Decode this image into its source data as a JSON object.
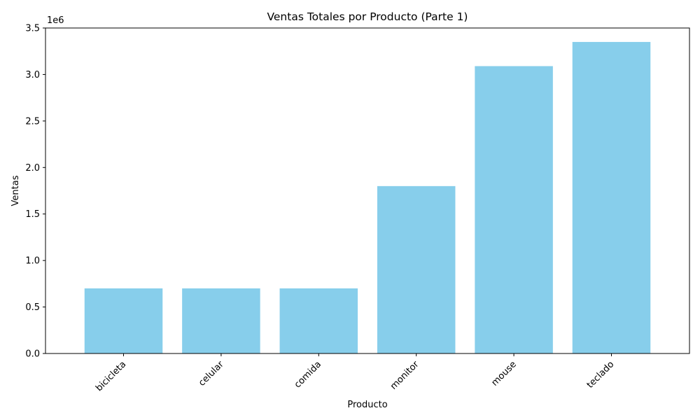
{
  "chart_data": {
    "type": "bar",
    "title": "Ventas Totales por Producto (Parte 1)",
    "xlabel": "Producto",
    "ylabel": "Ventas",
    "y_offset_label": "1e6",
    "categories": [
      "bicicleta",
      "celular",
      "comida",
      "monitor",
      "mouse",
      "teclado"
    ],
    "values": [
      700000,
      700000,
      700000,
      1800000,
      3090000,
      3350000
    ],
    "ylim": [
      0,
      3500000
    ],
    "y_ticks": [
      0,
      500000,
      1000000,
      1500000,
      2000000,
      2500000,
      3000000,
      3500000
    ],
    "y_tick_labels": [
      "0.0",
      "0.5",
      "1.0",
      "1.5",
      "2.0",
      "2.5",
      "3.0",
      "3.5"
    ],
    "bar_color": "#87ceeb",
    "grid": false,
    "x_tick_rotation": 45
  }
}
